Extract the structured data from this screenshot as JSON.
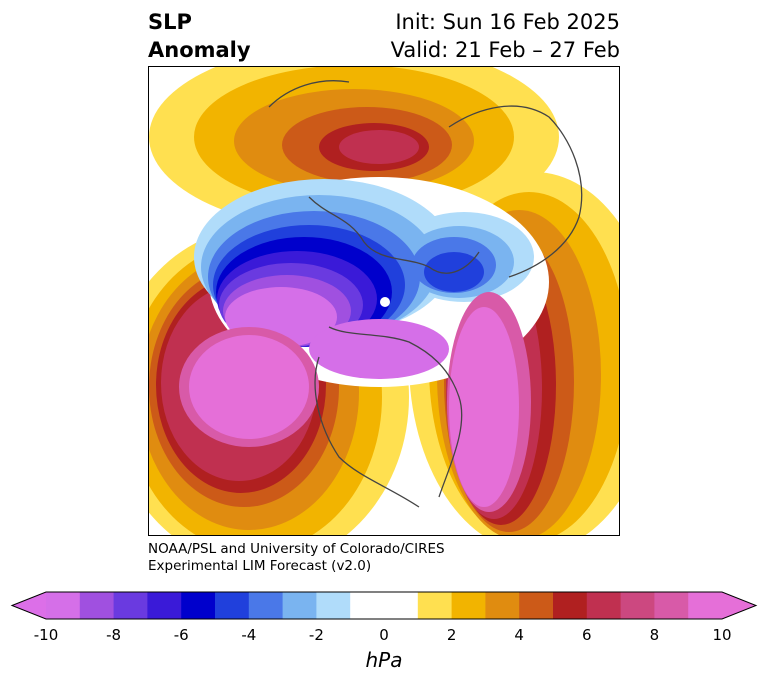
{
  "title": {
    "left_line1": "SLP",
    "left_line2": "Anomaly",
    "right_line1": "Init: Sun 16 Feb 2025",
    "right_line2": "Valid: 21 Feb – 27 Feb"
  },
  "credits": {
    "line1": "NOAA/PSL and University of Colorado/CIRES",
    "line2": "Experimental LIM Forecast (v2.0)"
  },
  "colorbar": {
    "units": "hPa",
    "min": -10,
    "max": 10,
    "step": 1,
    "extend": "both",
    "tick_labels": [
      "-10",
      "-8",
      "-6",
      "-4",
      "-2",
      "0",
      "2",
      "4",
      "6",
      "8",
      "10"
    ],
    "tick_values": [
      -10,
      -8,
      -6,
      -4,
      -2,
      0,
      2,
      4,
      6,
      8,
      10
    ],
    "under_color": "#dc6fe8",
    "over_color": "#e56fd8",
    "colors": [
      "#d56fe8",
      "#a050e0",
      "#6a3ae0",
      "#3a1ad8",
      "#0000cc",
      "#2040dc",
      "#4a78e8",
      "#7ab4f0",
      "#b0dcfa",
      "#ffffff",
      "#ffffff",
      "#ffe050",
      "#f2b400",
      "#e08c10",
      "#cc5a18",
      "#b02020",
      "#c03050",
      "#cc4880",
      "#d85aa8",
      "#e56fd8"
    ]
  },
  "map": {
    "projection": "north-polar-stereographic",
    "field": "SLP anomaly (hPa)"
  }
}
